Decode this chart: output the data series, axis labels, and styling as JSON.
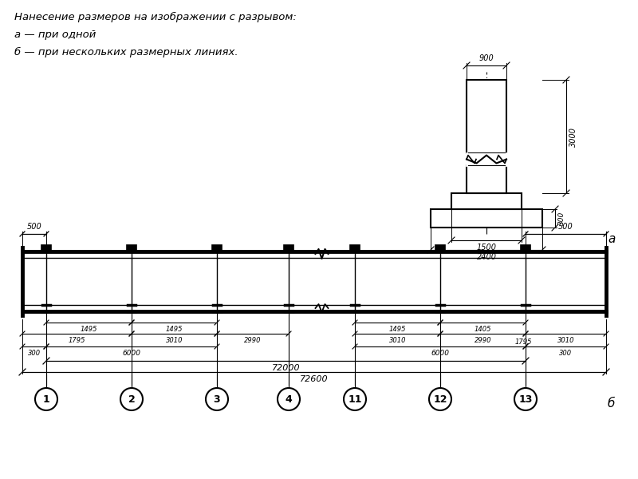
{
  "title_text": "Нанесение размеров на изображении с разрывом:",
  "subtitle_a": "а — при одной",
  "subtitle_b": "б — при нескольких размерных линиях.",
  "label_a": "а",
  "label_b": "б",
  "bg_color": "#ffffff",
  "line_color": "#000000",
  "column_labels": [
    "1",
    "2",
    "3",
    "4",
    "11",
    "12",
    "13"
  ]
}
